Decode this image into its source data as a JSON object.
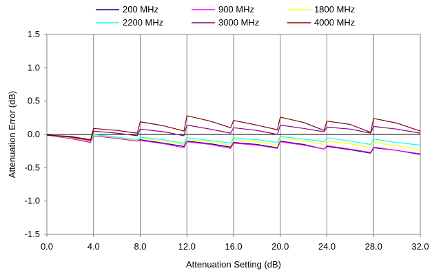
{
  "chart_data": {
    "type": "line",
    "title": "",
    "xlabel": "Attenuation Setting (dB)",
    "ylabel": "Attenuation Error (dB)",
    "xlim": [
      0,
      32
    ],
    "ylim": [
      -1.5,
      1.5
    ],
    "x_ticks": [
      0,
      4,
      8,
      12,
      16,
      20,
      24,
      28,
      32
    ],
    "x_tick_labels": [
      "0.0",
      "4.0",
      "8.0",
      "12.0",
      "16.0",
      "20.0",
      "24.0",
      "28.0",
      "32.0"
    ],
    "y_ticks": [
      1.5,
      1.0,
      0.5,
      0.0,
      -0.5,
      -1.0,
      -1.5
    ],
    "y_tick_labels": [
      "1.5",
      "1.0",
      "0.5",
      "0.0",
      "-0.5",
      "-1.0",
      "-1.5"
    ],
    "grid": "vertical",
    "legend_position": "top",
    "x": [
      0,
      2,
      3.75,
      4,
      6,
      7.75,
      8,
      10,
      11.75,
      12,
      14,
      15.75,
      16,
      18,
      19.75,
      20,
      22,
      23.75,
      24,
      26,
      27.75,
      28,
      30,
      32
    ],
    "series": [
      {
        "name": "200 MHz",
        "color": "#000080",
        "values": [
          -0.01,
          -0.06,
          -0.12,
          -0.02,
          -0.06,
          -0.1,
          -0.08,
          -0.13,
          -0.18,
          -0.1,
          -0.14,
          -0.19,
          -0.12,
          -0.15,
          -0.2,
          -0.1,
          -0.15,
          -0.22,
          -0.18,
          -0.23,
          -0.28,
          -0.2,
          -0.24,
          -0.3
        ]
      },
      {
        "name": "900 MHz",
        "color": "#ff00ff",
        "values": [
          -0.01,
          -0.06,
          -0.12,
          -0.02,
          -0.06,
          -0.1,
          -0.09,
          -0.14,
          -0.2,
          -0.11,
          -0.15,
          -0.21,
          -0.13,
          -0.16,
          -0.21,
          -0.11,
          -0.16,
          -0.22,
          -0.17,
          -0.22,
          -0.27,
          -0.19,
          -0.24,
          -0.29
        ]
      },
      {
        "name": "1800 MHz",
        "color": "#ffff00",
        "values": [
          -0.01,
          -0.05,
          -0.1,
          -0.01,
          -0.05,
          -0.09,
          -0.06,
          -0.1,
          -0.15,
          -0.08,
          -0.11,
          -0.16,
          -0.08,
          -0.11,
          -0.16,
          -0.05,
          -0.1,
          -0.15,
          -0.1,
          -0.14,
          -0.2,
          -0.12,
          -0.17,
          -0.23
        ]
      },
      {
        "name": "2200 MHz",
        "color": "#00ffff",
        "values": [
          -0.01,
          -0.04,
          -0.09,
          0.0,
          -0.04,
          -0.08,
          -0.04,
          -0.08,
          -0.13,
          -0.05,
          -0.09,
          -0.13,
          -0.05,
          -0.08,
          -0.12,
          -0.03,
          -0.07,
          -0.11,
          -0.05,
          -0.1,
          -0.15,
          -0.07,
          -0.12,
          -0.16
        ]
      },
      {
        "name": "3000 MHz",
        "color": "#800080",
        "values": [
          -0.01,
          -0.04,
          -0.09,
          0.05,
          0.02,
          -0.02,
          0.08,
          0.04,
          -0.02,
          0.14,
          0.08,
          0.02,
          0.1,
          0.06,
          0.0,
          0.14,
          0.09,
          0.04,
          0.11,
          0.08,
          0.02,
          0.12,
          0.08,
          0.02
        ]
      },
      {
        "name": "4000 MHz",
        "color": "#800000",
        "values": [
          -0.01,
          -0.03,
          -0.08,
          0.09,
          0.06,
          0.02,
          0.19,
          0.13,
          0.05,
          0.28,
          0.2,
          0.1,
          0.21,
          0.14,
          0.07,
          0.26,
          0.18,
          0.06,
          0.2,
          0.15,
          0.03,
          0.24,
          0.17,
          0.05
        ]
      }
    ]
  }
}
